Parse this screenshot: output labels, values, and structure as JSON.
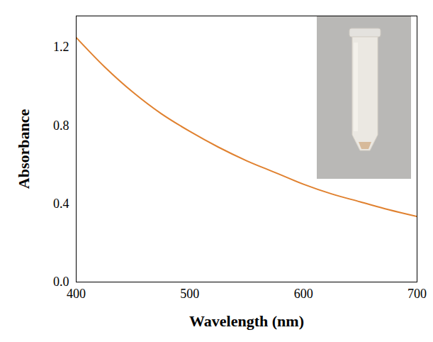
{
  "chart_data": {
    "type": "line",
    "x_label": "Wavelength (nm)",
    "y_label": "Absorbance",
    "x": [
      400,
      425,
      450,
      475,
      500,
      525,
      550,
      575,
      600,
      625,
      650,
      675,
      700
    ],
    "values": [
      1.25,
      1.1,
      0.97,
      0.86,
      0.77,
      0.69,
      0.62,
      0.56,
      0.5,
      0.45,
      0.41,
      0.37,
      0.335
    ],
    "color": "#e0812f",
    "xlim": [
      400,
      700
    ],
    "ylim": [
      0,
      1.36
    ],
    "xticks": [
      400,
      500,
      600,
      700
    ],
    "yticks": [
      0,
      0.4,
      0.8,
      1.2
    ],
    "grid": false
  }
}
